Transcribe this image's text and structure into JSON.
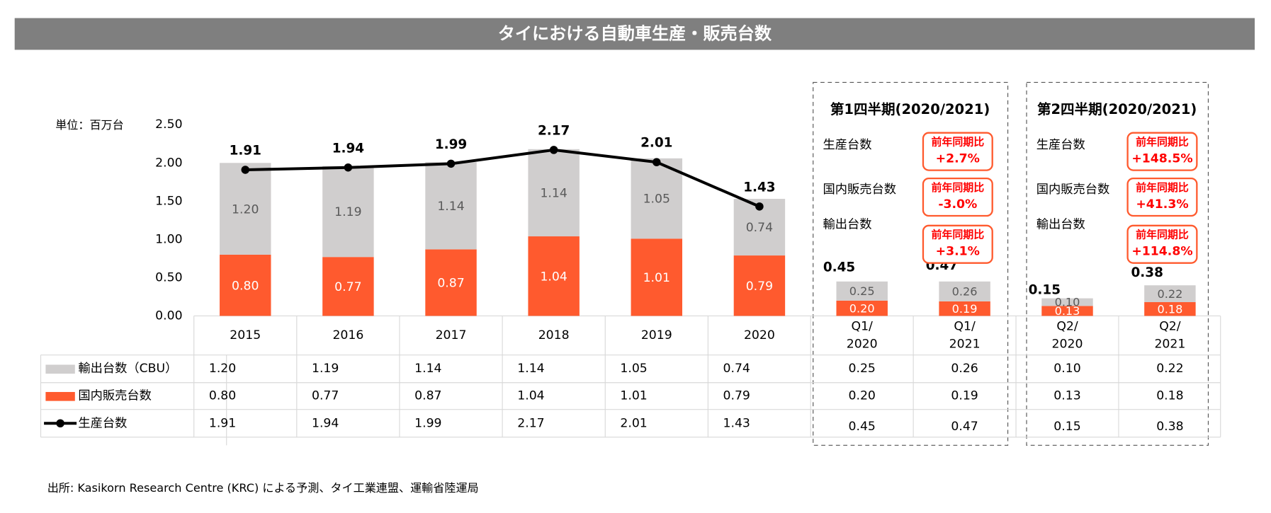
{
  "chart_data": {
    "type": "bar",
    "title": "タイにおける自動車生産・販売台数",
    "unit_label": "単位：百万台",
    "source": "出所:   Kasikorn Research Centre (KRC) による予測、タイ工業連盟、運輸省陸運局",
    "ylim": [
      0,
      2.5
    ],
    "yticks": [
      {
        "value": 0,
        "label": "0.00"
      },
      {
        "value": 0.5,
        "label": "0.50"
      },
      {
        "value": 1,
        "label": "1.00"
      },
      {
        "value": 1.5,
        "label": "1.50"
      },
      {
        "value": 2,
        "label": "2.00"
      },
      {
        "value": 2.5,
        "label": "2.50"
      }
    ],
    "panels": [
      {
        "categories": [
          "2015",
          "2016",
          "2017",
          "2018",
          "2019",
          "2020"
        ],
        "line": true
      },
      {
        "title": "第1四半期(2020/2021)",
        "categories": [
          "Q1/\n2020",
          "Q1/\n2021"
        ],
        "line": false,
        "annotations": [
          {
            "label": "生産台数",
            "change_label": "前年同期比",
            "change": "+2.7%"
          },
          {
            "label": "国内販売台数",
            "change_label": "前年同期比",
            "change": "-3.0%"
          },
          {
            "label": "輸出台数",
            "change_label": "前年同期比",
            "change": "+3.1%"
          }
        ]
      },
      {
        "title": "第2四半期(2020/2021)",
        "categories": [
          "Q2/\n2020",
          "Q2/\n2021"
        ],
        "line": false,
        "annotations": [
          {
            "label": "生産台数",
            "change_label": "前年同期比",
            "change": "+148.5%"
          },
          {
            "label": "国内販売台数",
            "change_label": "前年同期比",
            "change": "+41.3%"
          },
          {
            "label": "輸出台数",
            "change_label": "前年同期比",
            "change": "+114.8%"
          }
        ]
      }
    ],
    "series": [
      {
        "name": "輸出台数（CBU）",
        "color": "#d0cece",
        "kind": "bar",
        "values": [
          1.2,
          1.19,
          1.14,
          1.14,
          1.05,
          0.74,
          0.25,
          0.26,
          0.1,
          0.22
        ],
        "value_labels": [
          "1.20",
          "1.19",
          "1.14",
          "1.14",
          "1.05",
          "0.74",
          "0.25",
          "0.26",
          "0.10",
          "0.22"
        ]
      },
      {
        "name": "国内販売台数",
        "color": "#ff5a2e",
        "kind": "bar",
        "values": [
          0.8,
          0.77,
          0.87,
          1.04,
          1.01,
          0.79,
          0.2,
          0.19,
          0.13,
          0.18
        ],
        "value_labels": [
          "0.80",
          "0.77",
          "0.87",
          "1.04",
          "1.01",
          "0.79",
          "0.20",
          "0.19",
          "0.13",
          "0.18"
        ]
      },
      {
        "name": "生産台数",
        "color": "#000000",
        "kind": "line",
        "values": [
          1.91,
          1.94,
          1.99,
          2.17,
          2.01,
          1.43,
          0.45,
          0.47,
          0.15,
          0.38
        ],
        "value_labels": [
          "1.91",
          "1.94",
          "1.99",
          "2.17",
          "2.01",
          "1.43",
          "0.45",
          "0.47",
          "0.15",
          "0.38"
        ]
      }
    ]
  }
}
